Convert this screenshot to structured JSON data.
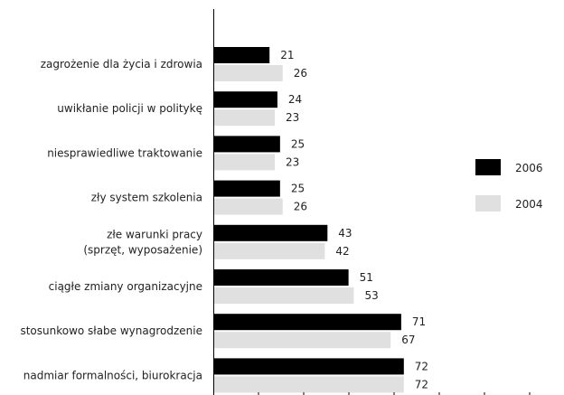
{
  "chart_data": {
    "type": "bar",
    "orientation": "horizontal",
    "categories": [
      [
        "zagrożenie dla życia i zdrowia"
      ],
      [
        "uwikłanie policji w politykę"
      ],
      [
        "niesprawiedliwe traktowanie"
      ],
      [
        "zły system szkolenia"
      ],
      [
        "złe warunki pracy",
        "(sprzęt, wyposażenie)"
      ],
      [
        "ciągłe zmiany organizacyjne"
      ],
      [
        "stosunkowo słabe wynagrodzenie"
      ],
      [
        "nadmiar formalności, biurokracja"
      ]
    ],
    "series": [
      {
        "name": "2006",
        "color": "#000000",
        "values": [
          21,
          24,
          25,
          25,
          43,
          51,
          71,
          72
        ]
      },
      {
        "name": "2004",
        "color": "#e0e0e0",
        "values": [
          26,
          23,
          23,
          26,
          42,
          53,
          67,
          72
        ]
      }
    ],
    "xlim": [
      0,
      100
    ],
    "legend": "right",
    "grid": false
  }
}
